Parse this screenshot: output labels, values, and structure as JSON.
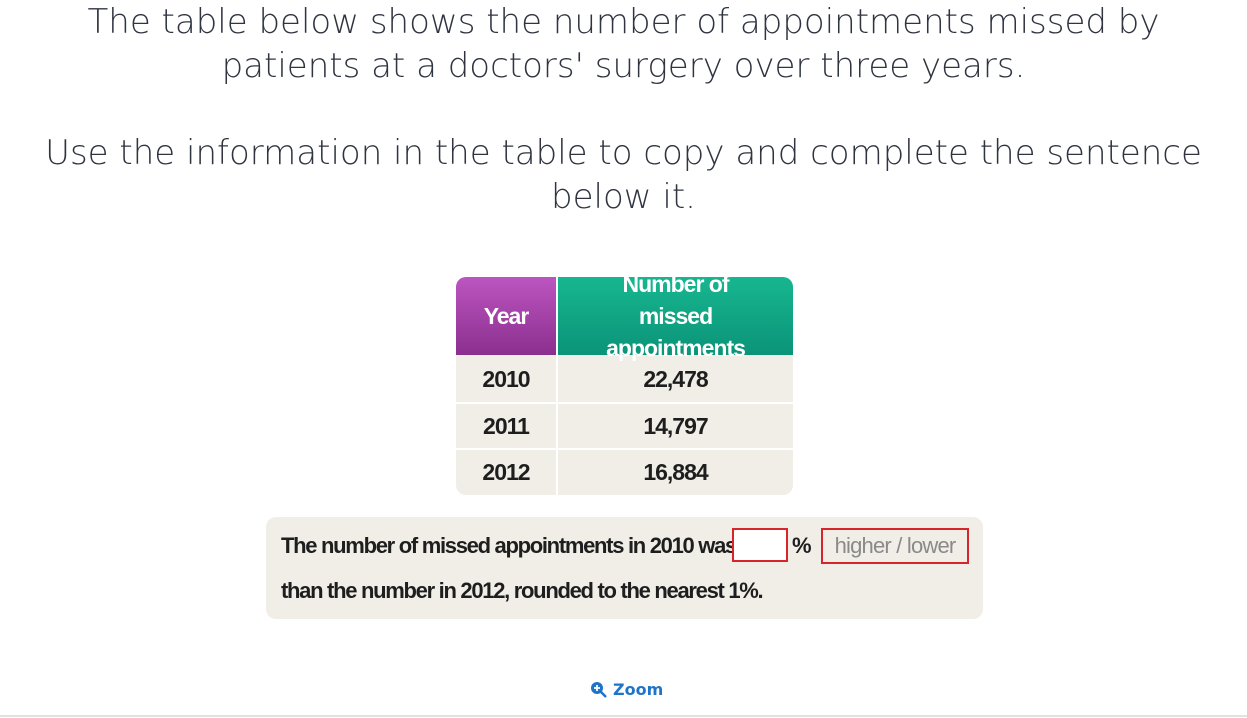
{
  "question": {
    "paragraphs": [
      "The table below shows the number of appointments missed by patients at a doctors' surgery over three years.",
      "Use the information in the table to copy and complete the sentence below it."
    ]
  },
  "table": {
    "header": [
      "Year",
      "Number of missed appointments"
    ],
    "rows": [
      [
        "2010",
        "22,478"
      ],
      [
        "2011",
        "14,797"
      ],
      [
        "2012",
        "16,884"
      ]
    ]
  },
  "sentence": {
    "before": "The number of missed appointments in 2010 was",
    "unit": "%",
    "choice": "higher / lower",
    "after": "than the number in 2012, rounded to the nearest 1%."
  },
  "zoom": "Zoom"
}
